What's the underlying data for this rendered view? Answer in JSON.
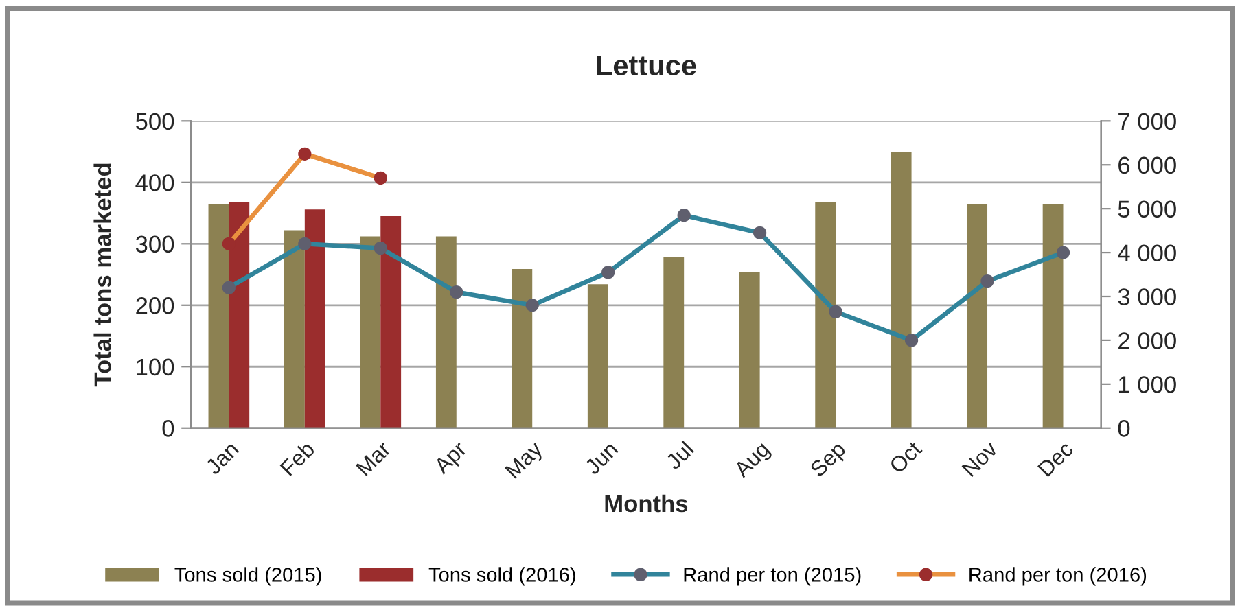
{
  "chart_data": {
    "type": "bar",
    "title": "Lettuce",
    "xlabel": "Months",
    "ylabel": "Total tons marketed",
    "categories": [
      "Jan",
      "Feb",
      "Mar",
      "Apr",
      "May",
      "Jun",
      "Jul",
      "Aug",
      "Sep",
      "Oct",
      "Nov",
      "Dec"
    ],
    "series": [
      {
        "name": "Tons sold (2015)",
        "color": "#8c8152",
        "values": [
          364,
          322,
          312,
          312,
          259,
          234,
          279,
          254,
          368,
          449,
          365,
          365
        ]
      },
      {
        "name": "Tons sold (2016)",
        "color": "#9b2d2d",
        "values": [
          368,
          356,
          345,
          null,
          null,
          null,
          null,
          null,
          null,
          null,
          null,
          null
        ]
      },
      {
        "name": "Rand per ton (2015)",
        "type": "line",
        "axis": "y2",
        "color": "#31849b",
        "colors": [
          "#5f5f6e",
          "#5f5f6e",
          "#5f5f6e",
          "#5f5f6e",
          "#5f5f6e",
          "#5f5f6e",
          "#5f5f6e",
          "#5f5f6e",
          "#5f5f6e",
          "#5f5f6e",
          "#5f5f6e",
          "#5f5f6e"
        ],
        "values": [
          3200,
          4200,
          4100,
          3100,
          2800,
          3550,
          4850,
          4450,
          2650,
          2000,
          3350,
          4000
        ]
      },
      {
        "name": "Rand per ton (2016)",
        "type": "line",
        "axis": "y2",
        "color": "#e9913f",
        "colors": [
          "#9b2d2d",
          "#9b2d2d",
          "#9b2d2d",
          "#9b2d2d",
          "#9b2d2d",
          "#9b2d2d",
          "#9b2d2d",
          "#9b2d2d",
          "#9b2d2d",
          "#9b2d2d",
          "#9b2d2d",
          "#9b2d2d"
        ],
        "values": [
          4200,
          6250,
          5700,
          null,
          null,
          null,
          null,
          null,
          null,
          null,
          null,
          null
        ]
      }
    ],
    "ylim": [
      0,
      500
    ],
    "yticks": [
      0,
      100,
      200,
      300,
      400,
      500
    ],
    "y2lim": [
      0,
      7000
    ],
    "y2ticks": [
      0,
      {
        "value": 1000,
        "label": "1 000"
      },
      {
        "value": 2000,
        "label": "2 000"
      },
      {
        "value": 3000,
        "label": "3 000"
      },
      {
        "value": 4000,
        "label": "4 000"
      },
      {
        "value": 5000,
        "label": "5 000"
      },
      {
        "value": 6000,
        "label": "6 000"
      },
      {
        "value": 7000,
        "label": "7 000"
      }
    ],
    "grid": "y",
    "legend": "bottom",
    "marker": "circle",
    "line_style": "solid"
  }
}
